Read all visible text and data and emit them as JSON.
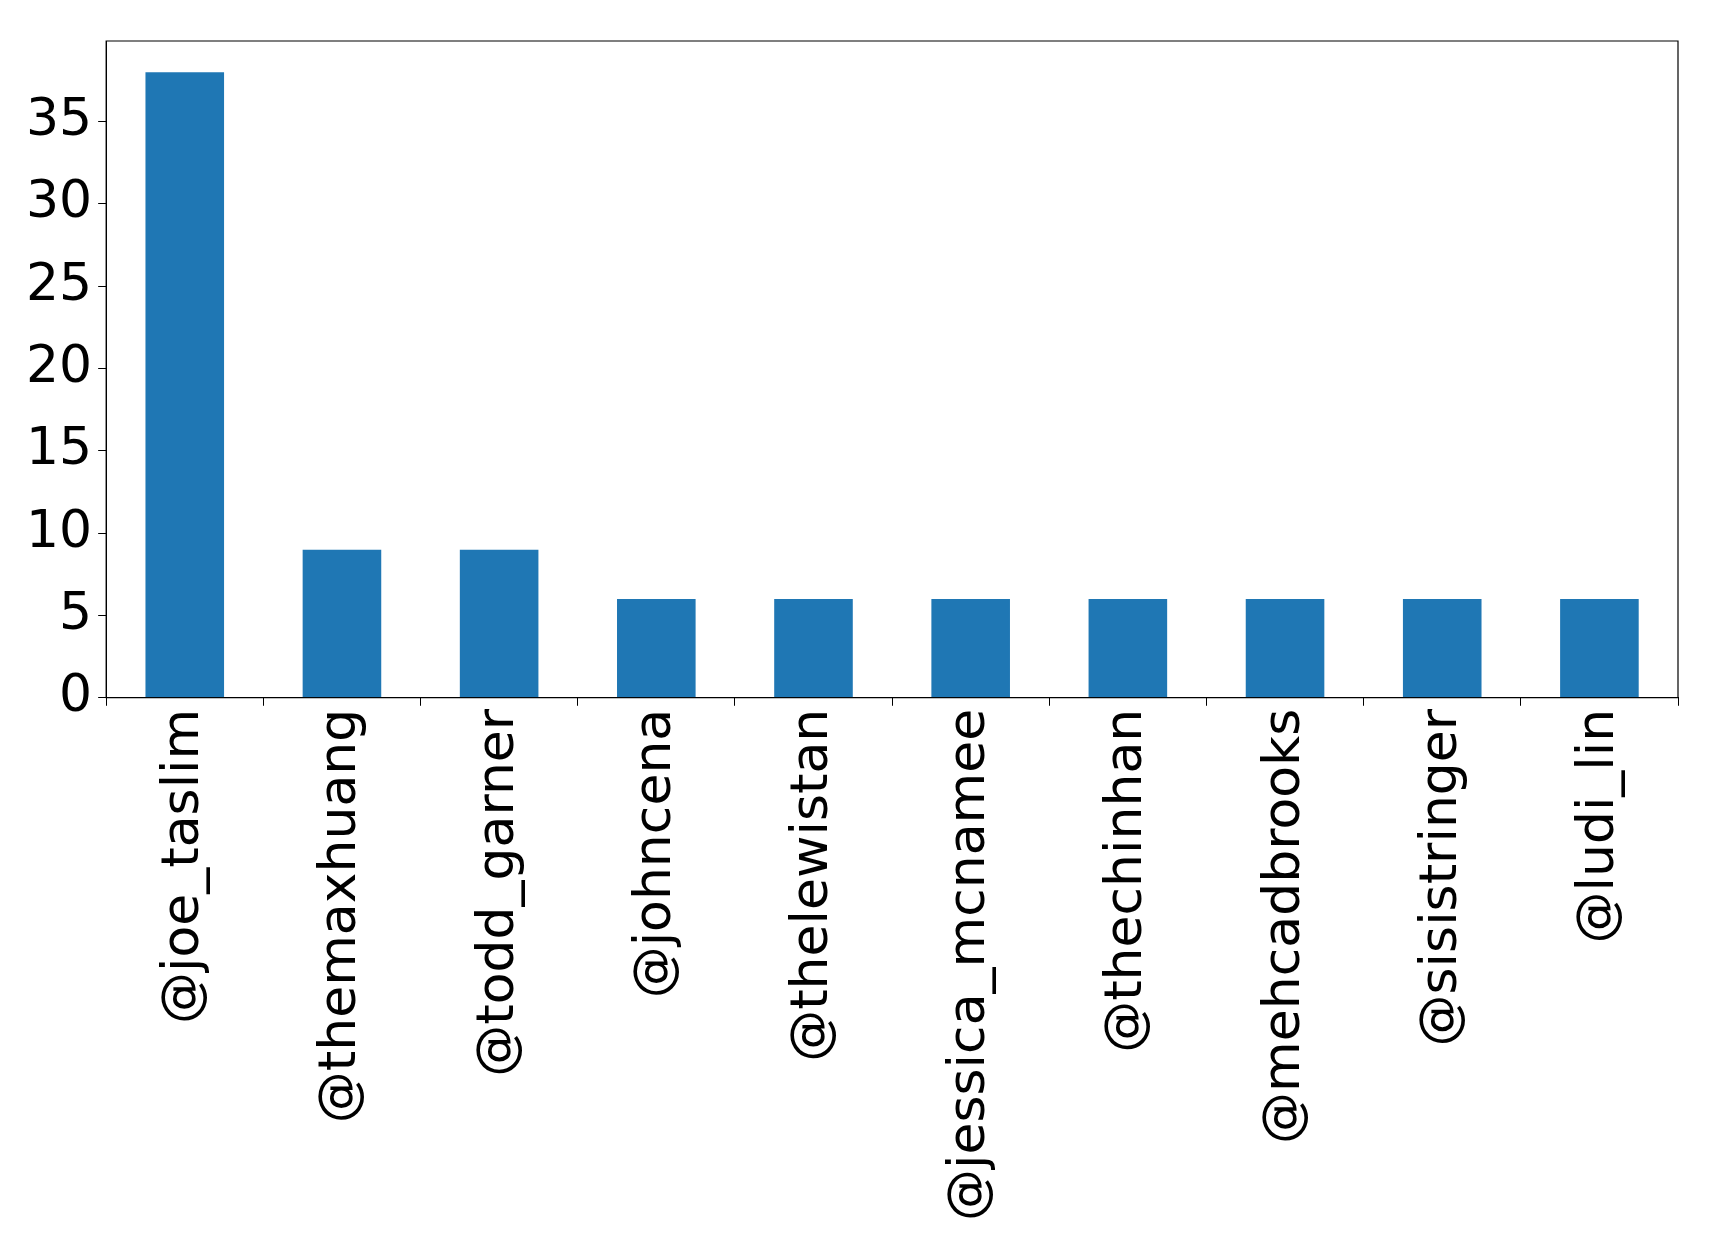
{
  "chart_data": {
    "type": "bar",
    "categories": [
      "@joe_taslim",
      "@themaxhuang",
      "@todd_garner",
      "@johncena",
      "@thelewistan",
      "@jessica_mcnamee",
      "@thechinhan",
      "@mehcadbrooks",
      "@sisistringer",
      "@ludi_lin"
    ],
    "values": [
      38,
      9,
      9,
      6,
      6,
      6,
      6,
      6,
      6,
      6
    ],
    "color": "#1f77b4",
    "ylim": [
      0,
      39.9
    ],
    "yticks": [
      0,
      5,
      10,
      15,
      20,
      25,
      30,
      35
    ],
    "grid": false,
    "legend": false
  }
}
